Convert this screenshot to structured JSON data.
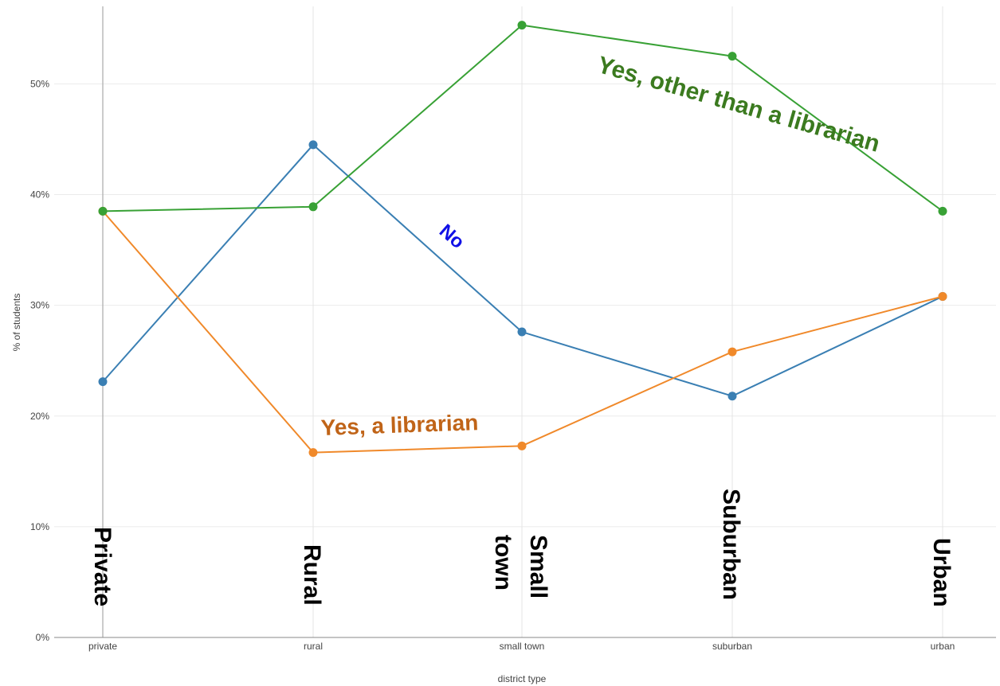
{
  "chart_data": {
    "type": "line",
    "title": "",
    "xlabel": "district type",
    "ylabel": "% of students",
    "categories": [
      "private",
      "rural",
      "small town",
      "suburban",
      "urban"
    ],
    "category_annotations": [
      "Private",
      "Rural",
      "Small town",
      "Suburban",
      "Urban"
    ],
    "ylim": [
      0,
      0.57
    ],
    "yticks": [
      0,
      0.1,
      0.2,
      0.3,
      0.4,
      0.5
    ],
    "ytick_labels": [
      "0%",
      "10%",
      "20%",
      "30%",
      "40%",
      "50%"
    ],
    "grid": true,
    "series": [
      {
        "name": "No",
        "color": "#3a7fb3",
        "label_color": "#1010e6",
        "values": [
          0.231,
          0.445,
          0.276,
          0.218,
          0.308
        ]
      },
      {
        "name": "Yes, a librarian",
        "color": "#f0892a",
        "label_color": "#c06418",
        "values": [
          0.385,
          0.167,
          0.173,
          0.258,
          0.308
        ]
      },
      {
        "name": "Yes, other than a librarian",
        "color": "#38a135",
        "label_color": "#3b7a1f",
        "values": [
          0.385,
          0.389,
          0.553,
          0.525,
          0.385
        ]
      }
    ]
  }
}
